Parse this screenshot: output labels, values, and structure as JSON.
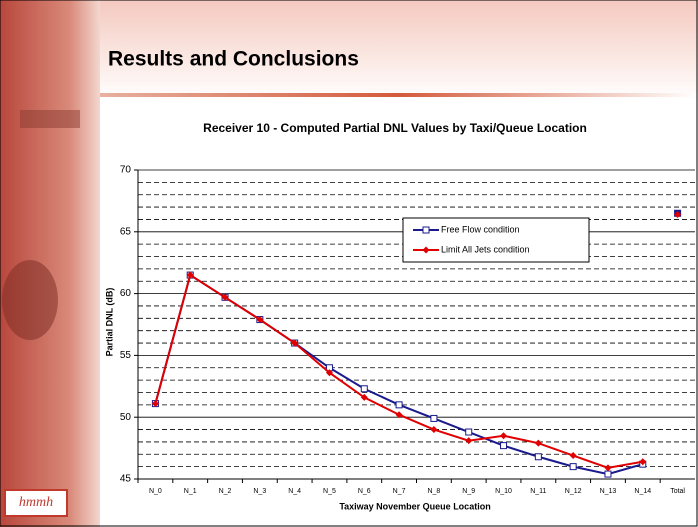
{
  "header": {
    "title": "Results and Conclusions"
  },
  "logo": "hmmh",
  "chart_data": {
    "type": "line",
    "title": "Receiver 10 - Computed Partial DNL Values by Taxi/Queue Location",
    "x_label": "Taxiway November Queue Location",
    "y_label": "Partial DNL (dB)",
    "categories": [
      "N_0",
      "N_1",
      "N_2",
      "N_3",
      "N_4",
      "N_5",
      "N_6",
      "N_7",
      "N_8",
      "N_9",
      "N_10",
      "N_11",
      "N_12",
      "N_13",
      "N_14",
      "Total"
    ],
    "series": [
      {
        "name": "Free Flow condition",
        "color": "#1a1a8c",
        "marker": "square",
        "values": [
          51.1,
          61.5,
          59.7,
          57.9,
          56.0,
          54.0,
          52.3,
          51.0,
          49.9,
          48.8,
          47.7,
          46.8,
          46.0,
          45.4,
          46.2,
          66.5
        ]
      },
      {
        "name": "Limit All Jets condition",
        "color": "#e00000",
        "marker": "diamond",
        "values": [
          51.1,
          61.5,
          59.7,
          57.9,
          56.0,
          53.6,
          51.6,
          50.2,
          49.0,
          48.1,
          48.5,
          47.9,
          46.9,
          45.9,
          46.4,
          66.4
        ]
      }
    ],
    "unconnected_categories": [
      "Total"
    ],
    "ylim": [
      45,
      70
    ],
    "yticks": [
      45,
      50,
      55,
      60,
      65,
      70
    ],
    "y_minor_ticks": [
      46,
      47,
      48,
      49,
      51,
      52,
      53,
      54,
      56,
      57,
      58,
      59,
      61,
      62,
      63,
      64,
      66,
      67,
      68,
      69
    ],
    "grid": true,
    "legend": "upper-right"
  }
}
